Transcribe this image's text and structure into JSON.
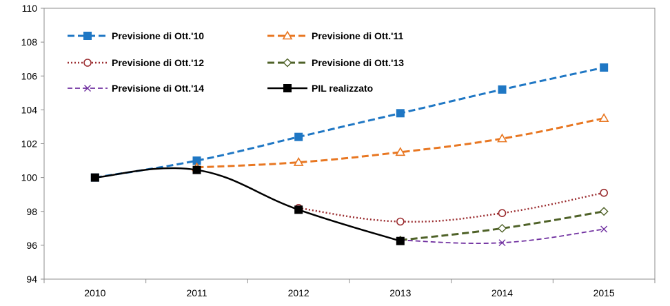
{
  "chart_data": {
    "type": "line",
    "x": [
      "2010",
      "2011",
      "2012",
      "2013",
      "2014",
      "2015"
    ],
    "ylim": [
      94,
      110
    ],
    "yticks": [
      94,
      96,
      98,
      100,
      102,
      104,
      106,
      108,
      110
    ],
    "grid": false,
    "legend_position": "top-left",
    "series": [
      {
        "name": "Previsione di Ott.'10",
        "color": "#1f77c4",
        "dash": "dashed",
        "marker": "square",
        "marker_fill": "filled",
        "values": [
          100.0,
          101.0,
          102.4,
          103.8,
          105.2,
          106.5
        ]
      },
      {
        "name": "Previsione di Ott.'11",
        "color": "#e87722",
        "dash": "dashed",
        "marker": "triangle",
        "marker_fill": "hollow",
        "values": [
          null,
          100.6,
          100.9,
          101.5,
          102.3,
          103.5
        ]
      },
      {
        "name": "Previsione di Ott.'12",
        "color": "#9b2d30",
        "dash": "dotted",
        "marker": "circle",
        "marker_fill": "hollow",
        "values": [
          null,
          null,
          98.2,
          97.4,
          97.9,
          99.1
        ]
      },
      {
        "name": "Previsione di Ott.'13",
        "color": "#4f6228",
        "dash": "dashed",
        "marker": "diamond",
        "marker_fill": "hollow",
        "values": [
          null,
          null,
          null,
          96.3,
          97.0,
          98.0
        ]
      },
      {
        "name": "Previsione di Ott.'14",
        "color": "#7030a0",
        "dash": "dashed-thin",
        "marker": "x",
        "marker_fill": "none",
        "values": [
          null,
          null,
          null,
          96.3,
          96.15,
          96.95
        ]
      },
      {
        "name": "PIL realizzato",
        "color": "#000000",
        "dash": "solid",
        "marker": "square",
        "marker_fill": "filled",
        "values": [
          100.0,
          100.45,
          98.1,
          96.25,
          null,
          null
        ]
      }
    ]
  }
}
